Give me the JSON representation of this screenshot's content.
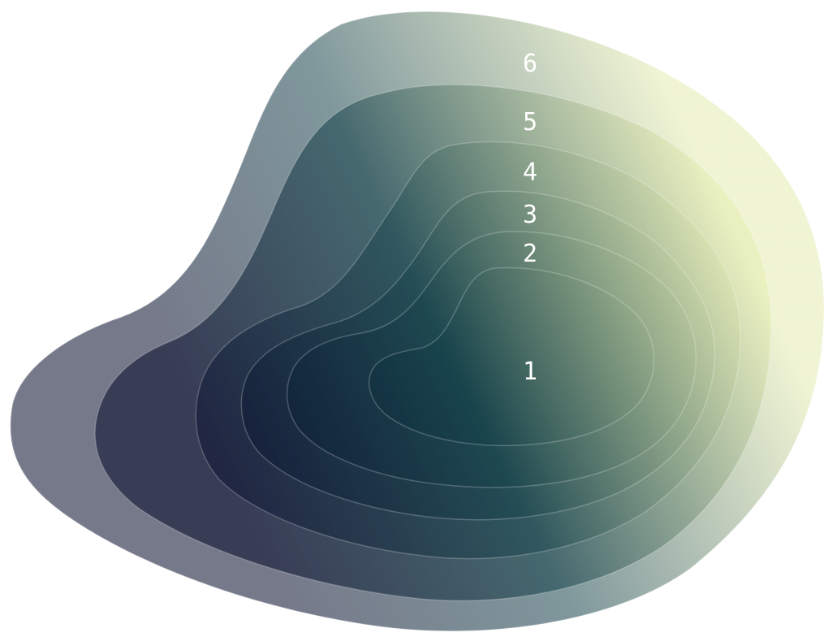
{
  "diagram": {
    "type": "nested-contour-layers",
    "colors": {
      "gradient_dark": "#050b2a",
      "gradient_mid": "#16424a",
      "gradient_light": "#e4ecb0",
      "label": "#ffffff"
    },
    "layers": [
      {
        "label": "6",
        "opacity": 0.55
      },
      {
        "label": "5",
        "opacity": 0.55
      },
      {
        "label": "4",
        "opacity": 0.45
      },
      {
        "label": "3",
        "opacity": 0.45
      },
      {
        "label": "2",
        "opacity": 0.45
      },
      {
        "label": "1",
        "opacity": 0.6
      }
    ]
  }
}
